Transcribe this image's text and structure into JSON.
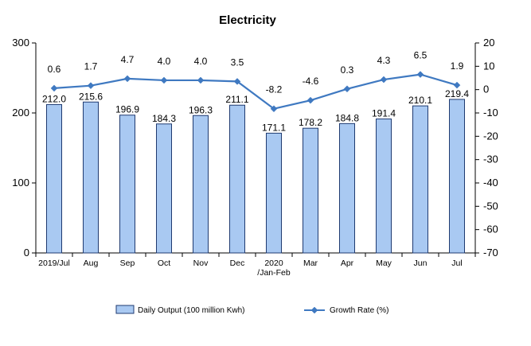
{
  "chart_data": {
    "type": "bar",
    "title": "Electricity",
    "categories": [
      [
        "2019/Jul"
      ],
      [
        "Aug"
      ],
      [
        "Sep"
      ],
      [
        "Oct"
      ],
      [
        "Nov"
      ],
      [
        "Dec"
      ],
      [
        "2020",
        "/Jan-Feb"
      ],
      [
        "Mar"
      ],
      [
        "Apr"
      ],
      [
        "May"
      ],
      [
        "Jun"
      ],
      [
        "Jul"
      ]
    ],
    "series": [
      {
        "name": "Daily Output (100 million Kwh)",
        "type": "bar",
        "axis": "left",
        "values": [
          212.0,
          215.6,
          196.9,
          184.3,
          196.3,
          211.1,
          171.1,
          178.2,
          184.8,
          191.4,
          210.1,
          219.4
        ],
        "color": "#a9c9f2",
        "border_color": "#1f3a70"
      },
      {
        "name": "Growth Rate (%)",
        "type": "line",
        "axis": "right",
        "values": [
          0.6,
          1.7,
          4.7,
          4.0,
          4.0,
          3.5,
          -8.2,
          -4.6,
          0.3,
          4.3,
          6.5,
          1.9
        ],
        "color": "#3f79c1"
      }
    ],
    "y_left": {
      "range": [
        0,
        300
      ],
      "ticks": [
        0,
        100,
        200,
        300
      ]
    },
    "y_right": {
      "range": [
        -70,
        20
      ],
      "ticks": [
        20,
        10,
        0,
        -10,
        -20,
        -30,
        -40,
        -50,
        -60,
        -70
      ]
    },
    "legend": {
      "placement": "bottom"
    },
    "grid": false
  }
}
